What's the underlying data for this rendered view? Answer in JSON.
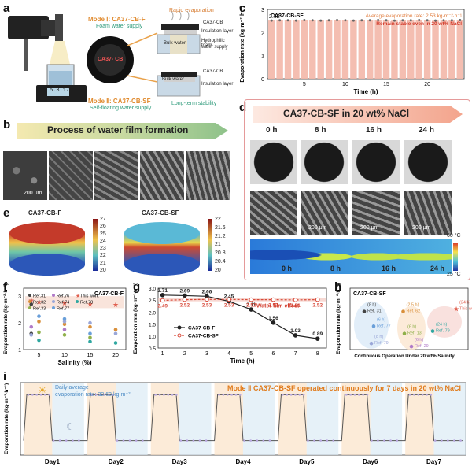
{
  "labels": {
    "a": "a",
    "b": "b",
    "c": "c",
    "d": "d",
    "e": "e",
    "f": "f",
    "g": "g",
    "h": "h",
    "i": "i"
  },
  "panel_a": {
    "mode1": "Mode Ⅰ: CA37-CB-F",
    "mode1_sub": "Foam water supply",
    "rapid": "Rapid evaporation",
    "ca37cb_top": "CA37-CB",
    "insulation_top": "Insulation layer",
    "bulk_water_top": "Bulk water",
    "hydrophilic": "Hydrophilic foam",
    "water_supply": "water supply",
    "center": "CA37- CB",
    "ca37cb_bottom": "CA37-CB",
    "insulation_bottom": "Insulation layer",
    "bulk_water_bottom": "Bulk water",
    "mode2": "Mode Ⅱ: CA37-CB-SF",
    "mode2_sub": "Self-floating water supply",
    "stability": "Long-term stability",
    "balance": "5.3.17"
  },
  "panel_b": {
    "title": "Process of water film formation",
    "scale": "200 μm"
  },
  "panel_d": {
    "title": "CA37-CB-SF in 20 wt% NaCl",
    "times": [
      "0 h",
      "8 h",
      "16 h",
      "24 h"
    ],
    "scale": "200 μm",
    "cb_max": "60 °C",
    "cb_min": "25 °C"
  },
  "panel_e": {
    "left_title": "CA37-CB-F",
    "right_title": "CA37-CB-SF",
    "left_ticks": [
      "27",
      "26",
      "25",
      "24",
      "23",
      "22",
      "21",
      "20"
    ],
    "right_ticks": [
      "22",
      "21.6",
      "21.2",
      "21",
      "20.8",
      "20.4",
      "20"
    ]
  },
  "panel_h_x": "Continuous Operation Under 20 wt% Salinity",
  "chart_data": [
    {
      "id": "c",
      "type": "bar",
      "sample": "CA37-CB-SF",
      "first_label": "2.52",
      "avg_text": "Average evaporation rate: 2.53 kg·m⁻²·h⁻¹",
      "stable_text": "Remain stable even in 20 wt% NaCl",
      "xlabel": "Time (h)",
      "ylabel": "Evaporation rate (kg·m⁻²·h⁻¹)",
      "xticks": [
        5,
        10,
        15,
        20
      ],
      "yticks": [
        0,
        1,
        2,
        3
      ],
      "ylim": [
        0,
        3
      ],
      "x": [
        1,
        2,
        3,
        4,
        5,
        6,
        7,
        8,
        9,
        10,
        11,
        12,
        13,
        14,
        15,
        16,
        17,
        18,
        19,
        20,
        21,
        22,
        23,
        24
      ],
      "values": [
        2.52,
        2.53,
        2.53,
        2.52,
        2.54,
        2.53,
        2.52,
        2.53,
        2.54,
        2.53,
        2.52,
        2.53,
        2.53,
        2.54,
        2.53,
        2.52,
        2.53,
        2.53,
        2.54,
        2.53,
        2.52,
        2.53,
        2.53,
        2.54
      ]
    },
    {
      "id": "f",
      "type": "scatter",
      "xlabel": "Salinity (%)",
      "ylabel": "Evaporation rate (kg·m⁻²·h⁻¹)",
      "xticks": [
        5,
        10,
        15,
        20
      ],
      "yticks": [
        1,
        2,
        3
      ],
      "xlim": [
        2,
        22
      ],
      "ylim": [
        1,
        3.3
      ],
      "sample": "CA37-CB-F",
      "legend": [
        "Ref.31",
        "Ref.32",
        "Ref.33",
        "Ref.76",
        "Ref.74",
        "Ref.77",
        "This work",
        "Ref.78"
      ],
      "series": [
        {
          "name": "Ref.31",
          "color": "#444444",
          "points": [
            [
              3.5,
              2.7
            ],
            [
              3.5,
              1.6
            ]
          ]
        },
        {
          "name": "Ref.32",
          "color": "#d98f3a",
          "points": [
            [
              5,
              2.05
            ],
            [
              10,
              1.95
            ],
            [
              15,
              1.85
            ],
            [
              20,
              1.75
            ]
          ]
        },
        {
          "name": "Ref.33",
          "color": "#8fb04a",
          "points": [
            [
              5,
              1.65
            ],
            [
              10,
              1.55
            ],
            [
              15,
              1.45
            ]
          ]
        },
        {
          "name": "Ref.76",
          "color": "#b07ac8",
          "points": [
            [
              3.5,
              1.85
            ],
            [
              10,
              1.75
            ]
          ]
        },
        {
          "name": "Ref.74",
          "color": "#9aa7d8",
          "points": [
            [
              3.5,
              1.55
            ],
            [
              10,
              2.05
            ],
            [
              15,
              2.0
            ],
            [
              20,
              1.6
            ]
          ]
        },
        {
          "name": "Ref.77",
          "color": "#6a9fd9",
          "points": [
            [
              5,
              2.25
            ],
            [
              10,
              2.15
            ],
            [
              15,
              1.6
            ]
          ]
        },
        {
          "name": "This work",
          "color": "#e06050",
          "points": [
            [
              3.5,
              2.85
            ],
            [
              5,
              2.78
            ],
            [
              10,
              2.74
            ],
            [
              15,
              2.7
            ],
            [
              20,
              2.68
            ]
          ]
        },
        {
          "name": "Ref.78",
          "color": "#2fa7a0",
          "points": [
            [
              5,
              1.35
            ],
            [
              15,
              1.3
            ],
            [
              20,
              1.25
            ]
          ]
        }
      ]
    },
    {
      "id": "g",
      "type": "line",
      "xlabel": "Time (h)",
      "ylabel": "Evaporation rate (kg·m⁻²·h⁻¹)",
      "x": [
        1,
        2,
        3,
        4,
        5,
        6,
        7,
        8
      ],
      "xlim": [
        0.8,
        8.4
      ],
      "ylim": [
        0.5,
        3.0
      ],
      "yticks": [
        0.5,
        1.0,
        1.5,
        2.0,
        2.5,
        3.0
      ],
      "annotation": "Water film effect",
      "series": [
        {
          "name": "CA37-CB-F",
          "color": "#222222",
          "values": [
            2.71,
            2.69,
            2.66,
            2.45,
            2.11,
            1.56,
            1.03,
            0.89
          ],
          "labels": [
            "2.71",
            "2.69",
            "2.66",
            "2.45",
            "2.11",
            "1.56",
            "1.03",
            "0.89"
          ]
        },
        {
          "name": "CA37-CB-SF",
          "color": "#d84a3a",
          "values": [
            2.49,
            2.52,
            2.53,
            2.53,
            2.52,
            2.52,
            2.51,
            2.52
          ],
          "labels": [
            "2.49",
            "2.52",
            "2.53",
            "2.53",
            "2.52",
            "2.52",
            "2.51",
            "2.52"
          ]
        }
      ]
    },
    {
      "id": "h",
      "type": "scatter",
      "sample": "CA37-CB-SF",
      "ylabel": "Evaporation rate (kg·m⁻²·h⁻¹)",
      "points": [
        {
          "label": "(8 h)",
          "ref": "Ref. 31",
          "x": 0.12,
          "y": 0.62,
          "color": "#444444"
        },
        {
          "label": "(6 h)",
          "ref": "Ref. 77",
          "x": 0.2,
          "y": 0.38,
          "color": "#6a9fd9"
        },
        {
          "label": "(2.5 h)",
          "ref": "Ref. 62",
          "x": 0.45,
          "y": 0.62,
          "color": "#d98f3a"
        },
        {
          "label": "(6 h)",
          "ref": "Ref. 13",
          "x": 0.46,
          "y": 0.26,
          "color": "#8fb04a"
        },
        {
          "label": "(8 h)",
          "ref": "Ref. 79",
          "x": 0.18,
          "y": 0.1,
          "color": "#9aa7d8"
        },
        {
          "label": "(6 h)",
          "ref": "Ref. 29",
          "x": 0.52,
          "y": 0.05,
          "color": "#b07ac8"
        },
        {
          "label": "(24 h)",
          "ref": "Ref. 79",
          "x": 0.7,
          "y": 0.3,
          "color": "#2fa7a0"
        },
        {
          "label": "(24 h)",
          "ref": "This work",
          "x": 0.9,
          "y": 0.66,
          "color": "#e06050"
        }
      ]
    },
    {
      "id": "i",
      "type": "line",
      "ylabel": "Evaporation rate (kg·m⁻²·h⁻¹)",
      "title": "Mode Ⅱ CA37-CB-SF operated continuously for 7 days in 20 wt% NaCl",
      "daily_note": "Daily average",
      "daily_value": "evaporation rate: 32.63 kg·m⁻²",
      "categories": [
        "Day1",
        "Day2",
        "Day3",
        "Day4",
        "Day5",
        "Day6",
        "Day7"
      ],
      "values_high": 2.5,
      "values_low": 0.6
    }
  ]
}
